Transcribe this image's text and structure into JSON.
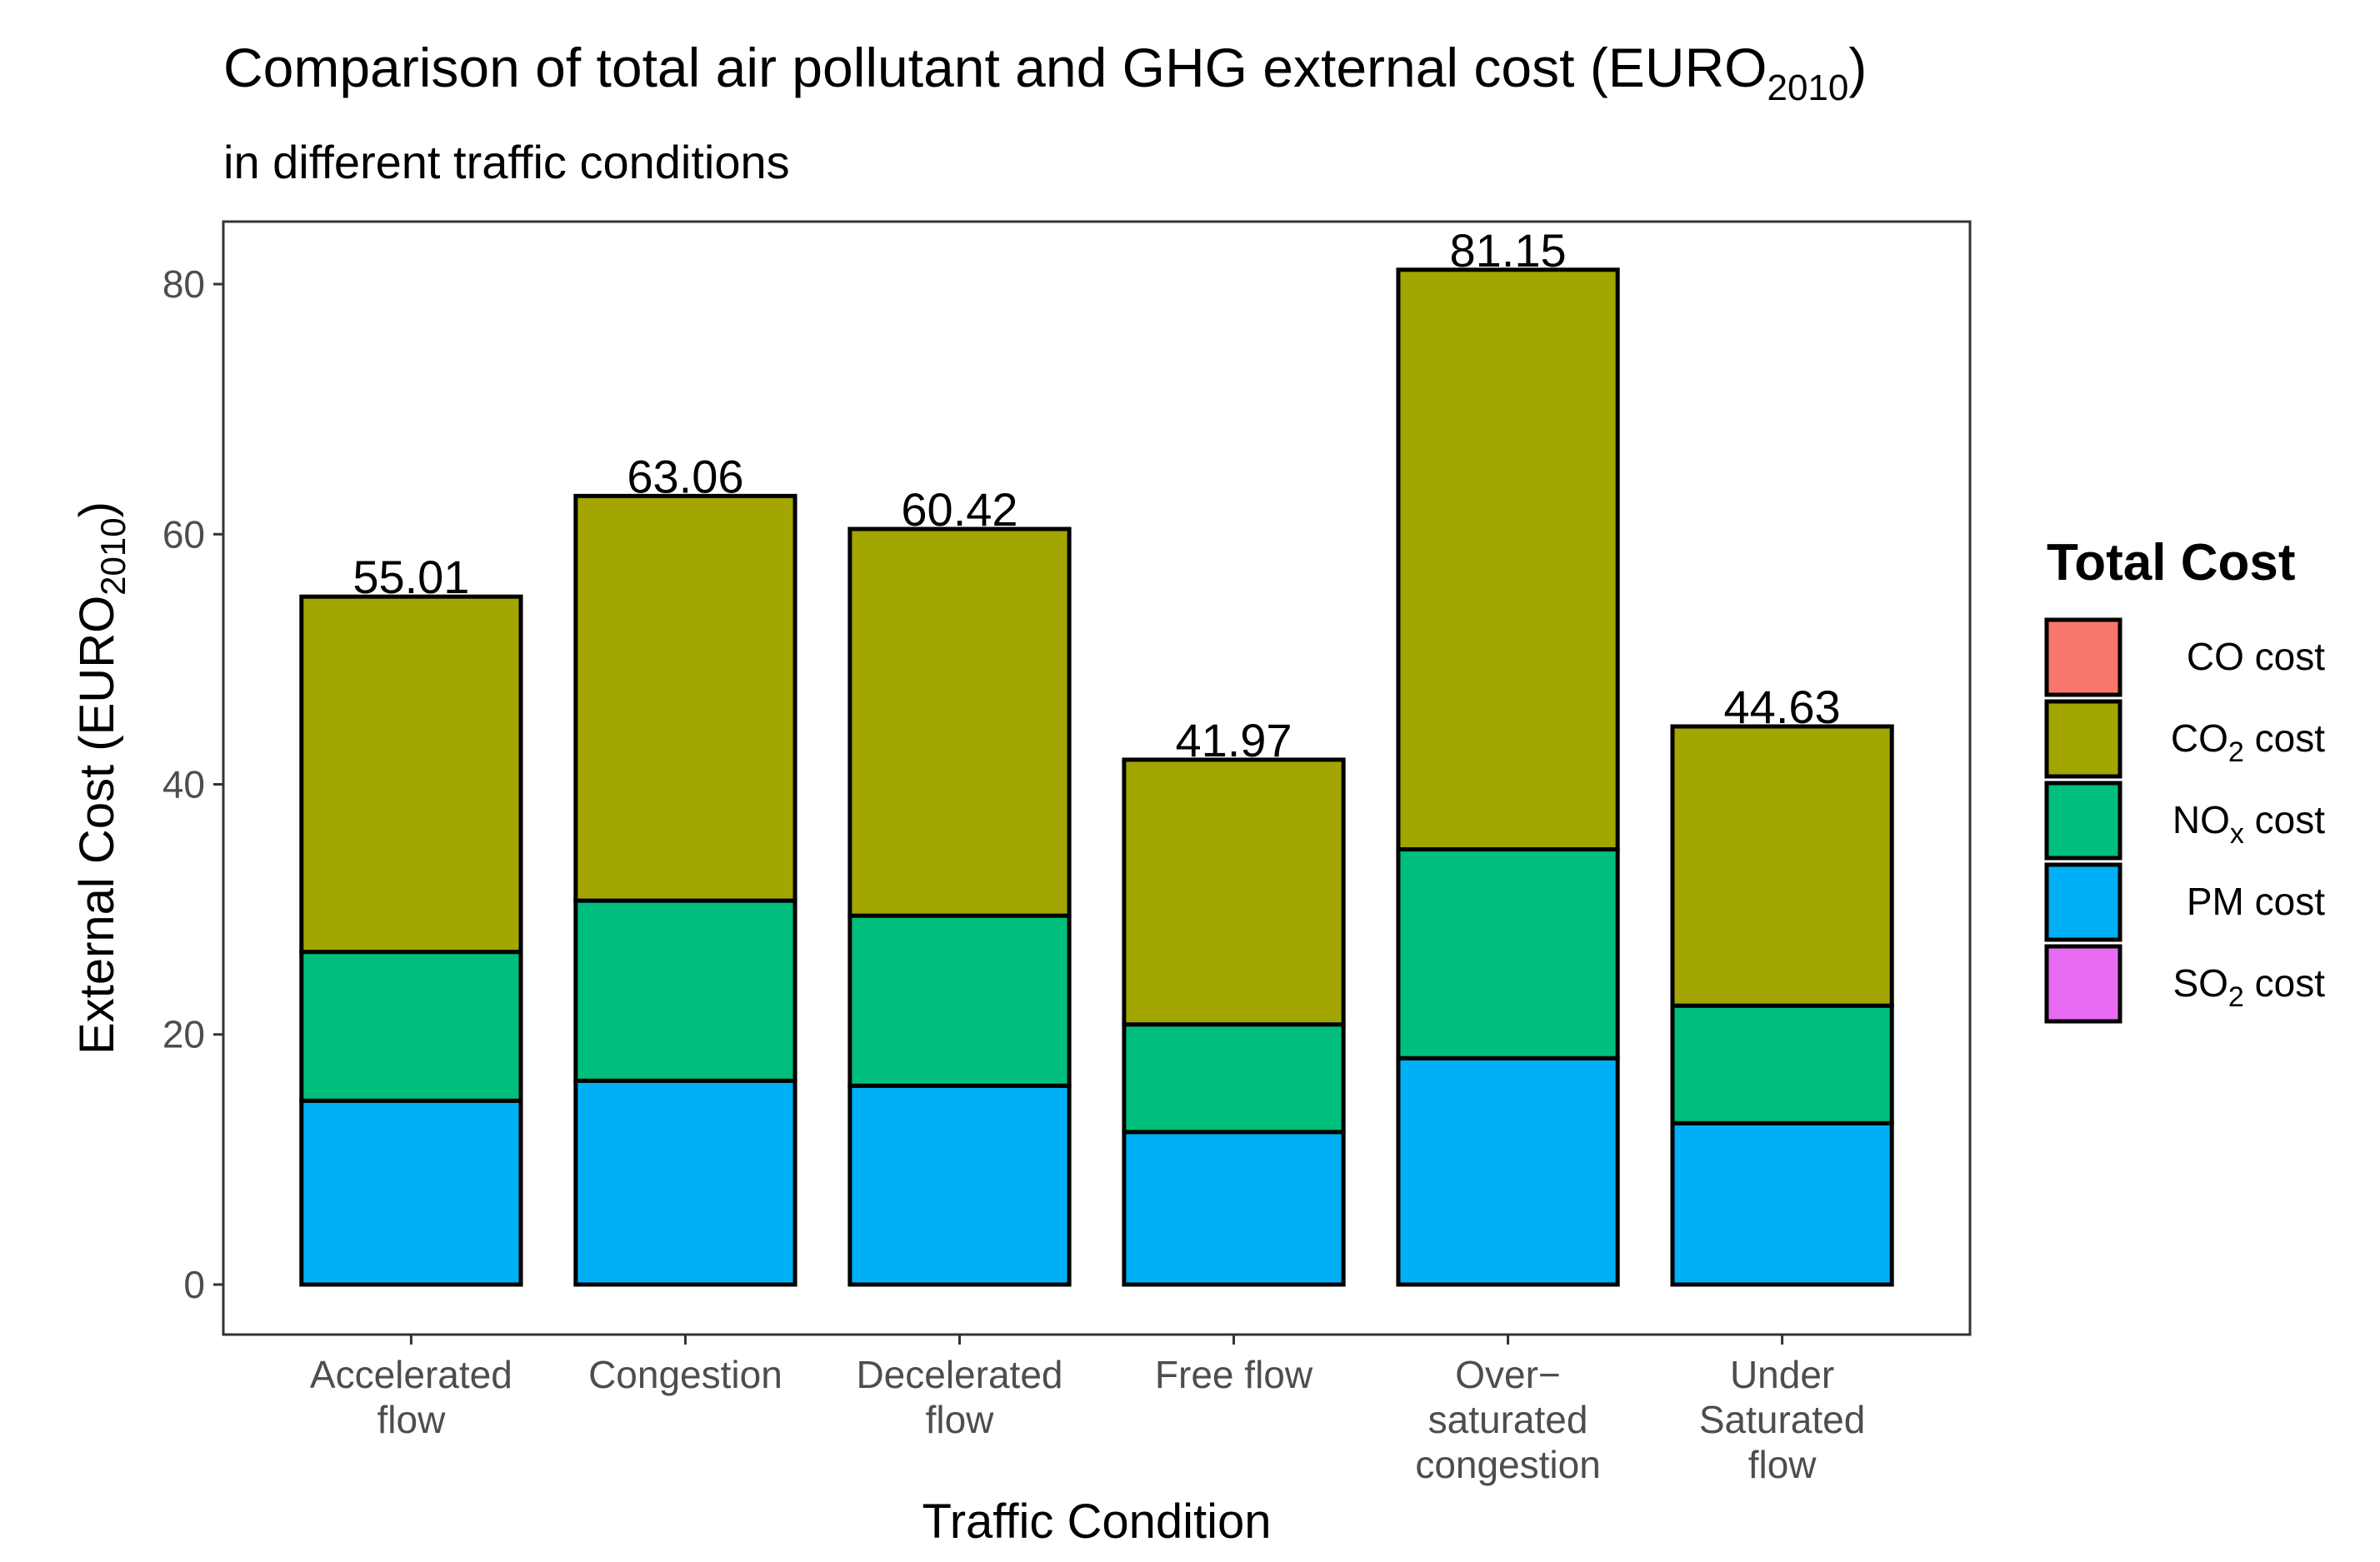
{
  "chart_data": {
    "type": "bar",
    "stacked": true,
    "title": {
      "main": "Comparison of total air pollutant and GHG external cost (EURO",
      "main_sub": "2010",
      "main_end": ")"
    },
    "subtitle": "in different traffic conditions",
    "xlabel": "Traffic Condition",
    "ylabel": {
      "main": "External Cost (EURO",
      "sub": "2010",
      "end": ")"
    },
    "ylim": [
      -4,
      85
    ],
    "yticks": [
      0,
      20,
      40,
      60,
      80
    ],
    "grid": false,
    "legend_position": "right",
    "categories": [
      [
        "Accelerated",
        "flow"
      ],
      [
        "Congestion"
      ],
      [
        "Decelerated",
        "flow"
      ],
      [
        "Free flow"
      ],
      [
        "Over−",
        "saturated",
        "congestion"
      ],
      [
        "Under",
        "Saturated",
        "flow"
      ]
    ],
    "series": [
      {
        "name": "PM cost",
        "color": "#00B0F6",
        "values": [
          14.7,
          16.3,
          15.9,
          12.2,
          18.1,
          12.9
        ]
      },
      {
        "name": "NOx cost",
        "color": "#00BF7D",
        "values": [
          11.9,
          14.4,
          13.6,
          8.6,
          16.7,
          9.4
        ]
      },
      {
        "name": "CO2 cost",
        "color": "#A3A500",
        "values": [
          28.41,
          32.36,
          30.92,
          21.17,
          46.35,
          22.33
        ]
      },
      {
        "name": "CO cost",
        "color": "#F8766D",
        "values": [
          0,
          0,
          0,
          0,
          0,
          0
        ]
      },
      {
        "name": "SO2 cost",
        "color": "#E76BF3",
        "values": [
          0,
          0,
          0,
          0,
          0,
          0
        ]
      }
    ],
    "totals": [
      "55.01",
      "63.06",
      "60.42",
      "41.97",
      "81.15",
      "44.63"
    ],
    "legend": {
      "title": "Total Cost",
      "items": [
        {
          "label": "CO cost",
          "base": "CO",
          "sub": "",
          "suffix": " cost",
          "color": "#F8766D"
        },
        {
          "label": "CO2 cost",
          "base": "CO",
          "sub": "2",
          "suffix": " cost",
          "color": "#A3A500"
        },
        {
          "label": "NOx cost",
          "base": "NO",
          "sub": "x",
          "suffix": " cost",
          "color": "#00BF7D"
        },
        {
          "label": "PM cost",
          "base": "PM",
          "sub": "",
          "suffix": " cost",
          "color": "#00B0F6"
        },
        {
          "label": "SO2 cost",
          "base": "SO",
          "sub": "2",
          "suffix": " cost",
          "color": "#E76BF3"
        }
      ]
    }
  }
}
